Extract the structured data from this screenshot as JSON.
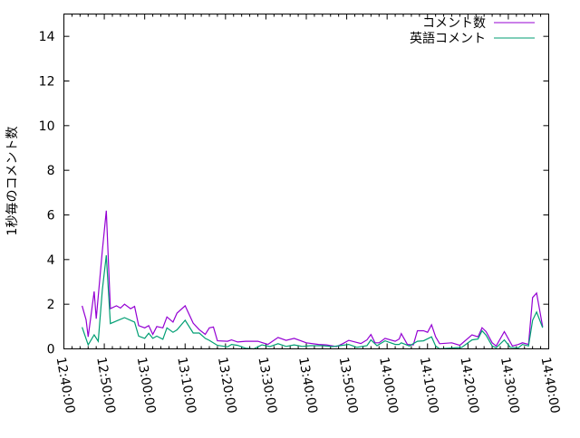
{
  "chart_data": {
    "type": "line",
    "title": "",
    "xlabel": "",
    "ylabel": "1秒毎のコメント数",
    "xlim": [
      "12:40:00",
      "14:40:00"
    ],
    "ylim": [
      0,
      15
    ],
    "x_ticks": [
      "12:40:00",
      "12:50:00",
      "13:00:00",
      "13:10:00",
      "13:20:00",
      "13:30:00",
      "13:40:00",
      "13:50:00",
      "14:00:00",
      "14:10:00",
      "14:20:00",
      "14:30:00",
      "14:40:00"
    ],
    "y_ticks": [
      "0",
      "2",
      "4",
      "6",
      "8",
      "10",
      "12",
      "14"
    ],
    "grid": false,
    "legend_position": "top-right",
    "series": [
      {
        "name": "コメント数",
        "color": "#9400d3",
        "points": [
          [
            "12:44:30",
            1.93
          ],
          [
            "12:45:30",
            1.3
          ],
          [
            "12:46:00",
            0.54
          ],
          [
            "12:47:30",
            2.57
          ],
          [
            "12:48:00",
            1.35
          ],
          [
            "12:49:30",
            4.39
          ],
          [
            "12:50:30",
            6.19
          ],
          [
            "12:51:30",
            1.8
          ],
          [
            "12:53:00",
            1.93
          ],
          [
            "12:54:00",
            1.83
          ],
          [
            "12:55:00",
            2.0
          ],
          [
            "12:56:30",
            1.8
          ],
          [
            "12:57:30",
            1.9
          ],
          [
            "12:58:30",
            1.04
          ],
          [
            "13:00:00",
            0.94
          ],
          [
            "13:01:00",
            1.04
          ],
          [
            "13:02:00",
            0.65
          ],
          [
            "13:03:00",
            1.0
          ],
          [
            "13:04:30",
            0.94
          ],
          [
            "13:05:30",
            1.43
          ],
          [
            "13:07:00",
            1.2
          ],
          [
            "13:08:00",
            1.6
          ],
          [
            "13:10:00",
            1.93
          ],
          [
            "13:12:00",
            1.15
          ],
          [
            "13:13:30",
            0.86
          ],
          [
            "13:15:00",
            0.65
          ],
          [
            "13:16:00",
            0.94
          ],
          [
            "13:17:00",
            0.98
          ],
          [
            "13:18:00",
            0.36
          ],
          [
            "13:20:30",
            0.34
          ],
          [
            "13:21:30",
            0.4
          ],
          [
            "13:23:00",
            0.31
          ],
          [
            "13:25:00",
            0.34
          ],
          [
            "13:28:00",
            0.34
          ],
          [
            "13:30:30",
            0.2
          ],
          [
            "13:33:00",
            0.51
          ],
          [
            "13:35:00",
            0.38
          ],
          [
            "13:37:00",
            0.47
          ],
          [
            "13:40:00",
            0.27
          ],
          [
            "13:43:00",
            0.2
          ],
          [
            "13:45:00",
            0.18
          ],
          [
            "13:47:30",
            0.1
          ],
          [
            "13:49:00",
            0.23
          ],
          [
            "13:50:30",
            0.38
          ],
          [
            "13:53:30",
            0.24
          ],
          [
            "13:55:00",
            0.4
          ],
          [
            "13:56:00",
            0.64
          ],
          [
            "13:57:00",
            0.27
          ],
          [
            "13:58:00",
            0.27
          ],
          [
            "13:59:30",
            0.47
          ],
          [
            "14:02:00",
            0.34
          ],
          [
            "14:03:00",
            0.44
          ],
          [
            "14:03:30",
            0.68
          ],
          [
            "14:05:00",
            0.2
          ],
          [
            "14:06:30",
            0.18
          ],
          [
            "14:07:30",
            0.81
          ],
          [
            "14:09:00",
            0.81
          ],
          [
            "14:10:00",
            0.74
          ],
          [
            "14:11:00",
            1.08
          ],
          [
            "14:12:00",
            0.54
          ],
          [
            "14:13:00",
            0.23
          ],
          [
            "14:16:00",
            0.27
          ],
          [
            "14:18:00",
            0.16
          ],
          [
            "14:21:00",
            0.63
          ],
          [
            "14:22:30",
            0.54
          ],
          [
            "14:23:30",
            0.95
          ],
          [
            "14:24:30",
            0.77
          ],
          [
            "14:26:00",
            0.27
          ],
          [
            "14:27:00",
            0.13
          ],
          [
            "14:29:00",
            0.77
          ],
          [
            "14:31:00",
            0.13
          ],
          [
            "14:32:30",
            0.2
          ],
          [
            "14:33:30",
            0.27
          ],
          [
            "14:35:00",
            0.2
          ],
          [
            "14:36:00",
            2.3
          ],
          [
            "14:37:00",
            2.5
          ],
          [
            "14:38:30",
            0.99
          ]
        ]
      },
      {
        "name": "英語コメント",
        "color": "#009e73",
        "points": [
          [
            "12:44:30",
            0.97
          ],
          [
            "12:46:00",
            0.18
          ],
          [
            "12:47:30",
            0.63
          ],
          [
            "12:48:30",
            0.34
          ],
          [
            "12:49:30",
            2.63
          ],
          [
            "12:50:30",
            4.19
          ],
          [
            "12:51:30",
            1.13
          ],
          [
            "12:53:00",
            1.25
          ],
          [
            "12:55:00",
            1.4
          ],
          [
            "12:57:30",
            1.2
          ],
          [
            "12:58:30",
            0.57
          ],
          [
            "13:00:00",
            0.47
          ],
          [
            "13:01:00",
            0.7
          ],
          [
            "13:02:00",
            0.47
          ],
          [
            "13:03:00",
            0.57
          ],
          [
            "13:04:30",
            0.43
          ],
          [
            "13:05:30",
            0.94
          ],
          [
            "13:07:00",
            0.74
          ],
          [
            "13:08:00",
            0.85
          ],
          [
            "13:10:00",
            1.28
          ],
          [
            "13:12:00",
            0.71
          ],
          [
            "13:13:30",
            0.71
          ],
          [
            "13:15:00",
            0.47
          ],
          [
            "13:16:00",
            0.38
          ],
          [
            "13:18:00",
            0.16
          ],
          [
            "13:20:30",
            0.09
          ],
          [
            "13:21:30",
            0.2
          ],
          [
            "13:23:00",
            0.16
          ],
          [
            "13:25:00",
            0.03
          ],
          [
            "13:27:00",
            0.0
          ],
          [
            "13:29:00",
            0.18
          ],
          [
            "13:31:00",
            0.1
          ],
          [
            "13:33:00",
            0.23
          ],
          [
            "13:35:00",
            0.11
          ],
          [
            "13:37:00",
            0.18
          ],
          [
            "13:39:00",
            0.11
          ],
          [
            "13:41:00",
            0.14
          ],
          [
            "13:44:00",
            0.14
          ],
          [
            "13:46:30",
            0.1
          ],
          [
            "13:50:30",
            0.2
          ],
          [
            "13:52:30",
            0.07
          ],
          [
            "13:55:00",
            0.14
          ],
          [
            "13:56:00",
            0.4
          ],
          [
            "13:57:30",
            0.14
          ],
          [
            "13:59:30",
            0.36
          ],
          [
            "14:02:00",
            0.2
          ],
          [
            "14:03:00",
            0.2
          ],
          [
            "14:03:30",
            0.27
          ],
          [
            "14:05:30",
            0.13
          ],
          [
            "14:07:30",
            0.34
          ],
          [
            "14:09:00",
            0.36
          ],
          [
            "14:11:00",
            0.54
          ],
          [
            "14:12:00",
            0.13
          ],
          [
            "14:13:00",
            0.0
          ],
          [
            "14:18:30",
            0.07
          ],
          [
            "14:21:00",
            0.4
          ],
          [
            "14:22:30",
            0.44
          ],
          [
            "14:23:30",
            0.81
          ],
          [
            "14:24:30",
            0.61
          ],
          [
            "14:26:00",
            0.13
          ],
          [
            "14:27:00",
            0.05
          ],
          [
            "14:29:00",
            0.4
          ],
          [
            "14:30:30",
            0.07
          ],
          [
            "14:32:30",
            0.05
          ],
          [
            "14:33:30",
            0.2
          ],
          [
            "14:35:00",
            0.13
          ],
          [
            "14:36:00",
            1.28
          ],
          [
            "14:37:00",
            1.65
          ],
          [
            "14:38:30",
            0.95
          ]
        ]
      }
    ]
  }
}
